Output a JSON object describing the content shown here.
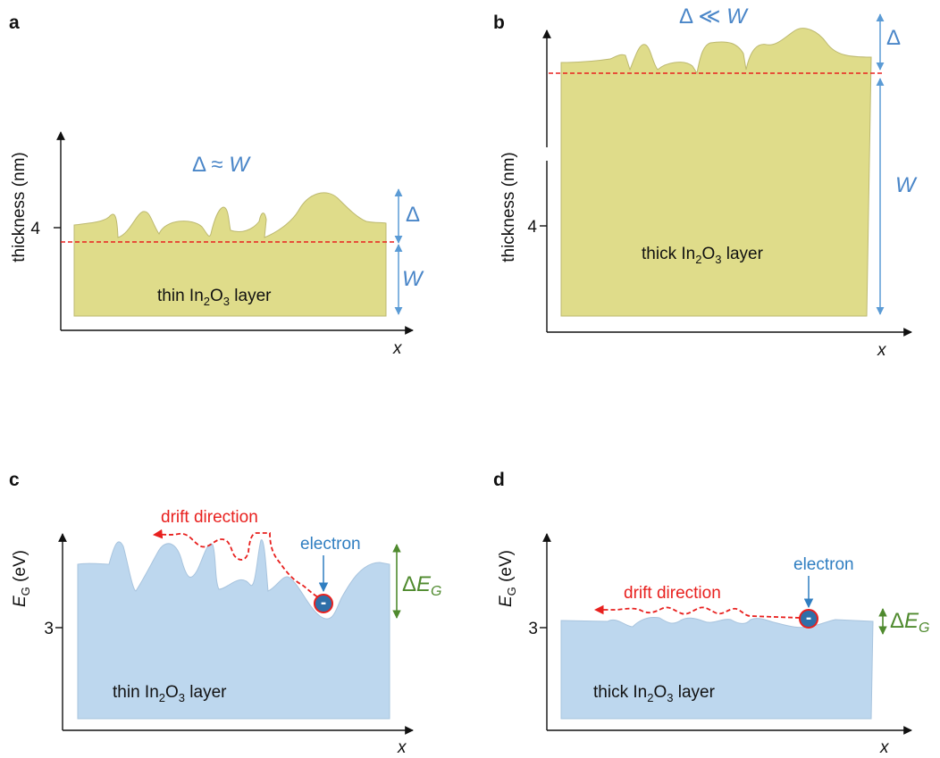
{
  "panels": [
    {
      "label": "a",
      "y_label": [
        "thickness (nm)"
      ],
      "y_tick": "4",
      "x_label": "x",
      "relation": [
        "Δ ≈ ",
        "W"
      ],
      "delta": "Δ",
      "w": "W",
      "layer": [
        "thin In",
        "2",
        "O",
        "3",
        " layer"
      ]
    },
    {
      "label": "b",
      "y_label": [
        "thickness (nm)"
      ],
      "y_tick": "4",
      "x_label": "x",
      "relation": [
        "Δ ≪ ",
        "W"
      ],
      "delta": "Δ",
      "w": "W",
      "layer": [
        "thick In",
        "2",
        "O",
        "3",
        " layer"
      ]
    },
    {
      "label": "c",
      "y_label": [
        "E",
        "G",
        " (eV)"
      ],
      "y_tick": "3",
      "x_label": "x",
      "drift": "drift direction",
      "electron": "electron",
      "electron_sign": "-",
      "delta_eg": [
        "Δ",
        "E",
        "G"
      ],
      "layer": [
        "thin In",
        "2",
        "O",
        "3",
        " layer"
      ]
    },
    {
      "label": "d",
      "y_label": [
        "E",
        "G",
        " (eV)"
      ],
      "y_tick": "3",
      "x_label": "x",
      "drift": "drift direction",
      "electron": "electron",
      "electron_sign": "-",
      "delta_eg": [
        "Δ",
        "E",
        "G"
      ],
      "layer": [
        "thick In",
        "2",
        "O",
        "3",
        " layer"
      ]
    }
  ]
}
